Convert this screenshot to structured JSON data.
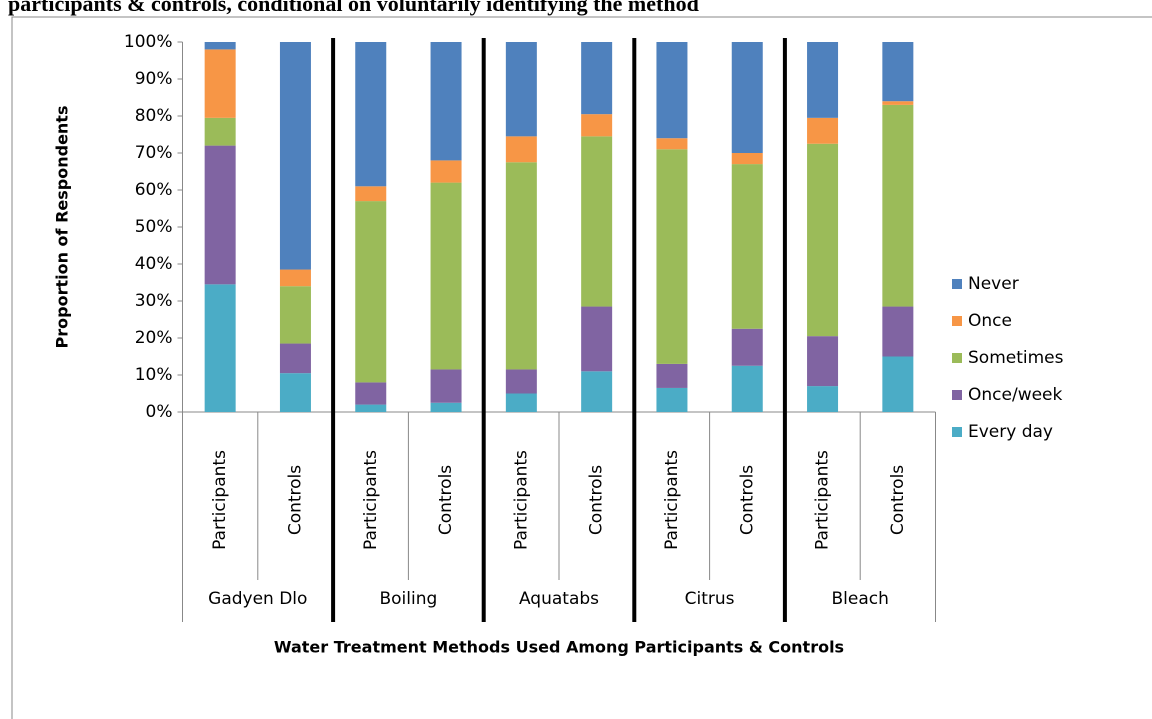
{
  "chart_data": {
    "type": "stacked-bar",
    "title": "participants & controls, conditional on voluntarily identifying the method",
    "y_label": "Proportion of Respondents",
    "x_label": "Water Treatment Methods Used Among Participants & Controls",
    "categories": [
      "Participants",
      "Controls",
      "Participants",
      "Controls",
      "Participants",
      "Controls",
      "Participants",
      "Controls",
      "Participants",
      "Controls"
    ],
    "groups": [
      "Gadyen Dlo",
      "Boiling",
      "Aquatabs",
      "Citrus",
      "Bleach"
    ],
    "series": [
      {
        "name": "Every day",
        "color": "#4bacc6",
        "values": [
          34.5,
          10.5,
          2,
          2.5,
          5,
          11,
          6.5,
          12.5,
          7,
          15
        ]
      },
      {
        "name": "Once/week",
        "color": "#8064a2",
        "values": [
          37.5,
          8,
          6,
          9,
          6.5,
          17.5,
          6.5,
          10,
          13.5,
          13.5
        ]
      },
      {
        "name": "Sometimes",
        "color": "#9bbb59",
        "values": [
          7.5,
          15.5,
          49,
          50.5,
          56,
          46,
          58,
          44.5,
          52,
          54.5
        ]
      },
      {
        "name": "Once",
        "color": "#f79646",
        "values": [
          18.5,
          4.5,
          4,
          6,
          7,
          6,
          3,
          3,
          7,
          1
        ]
      },
      {
        "name": "Never",
        "color": "#4f81bd",
        "values": [
          2,
          61.5,
          39,
          32,
          25.5,
          19.5,
          26,
          30,
          20.5,
          16
        ]
      }
    ],
    "ylim": [
      0,
      100
    ],
    "yticks": [
      {
        "value": 0,
        "label": "0%"
      },
      {
        "value": 10,
        "label": "10%"
      },
      {
        "value": 20,
        "label": "20%"
      },
      {
        "value": 30,
        "label": "30%"
      },
      {
        "value": 40,
        "label": "40%"
      },
      {
        "value": 50,
        "label": "50%"
      },
      {
        "value": 60,
        "label": "60%"
      },
      {
        "value": 70,
        "label": "70%"
      },
      {
        "value": 80,
        "label": "80%"
      },
      {
        "value": 90,
        "label": "90%"
      },
      {
        "value": 100,
        "label": "100%"
      }
    ],
    "grid": false,
    "legend": "right"
  }
}
